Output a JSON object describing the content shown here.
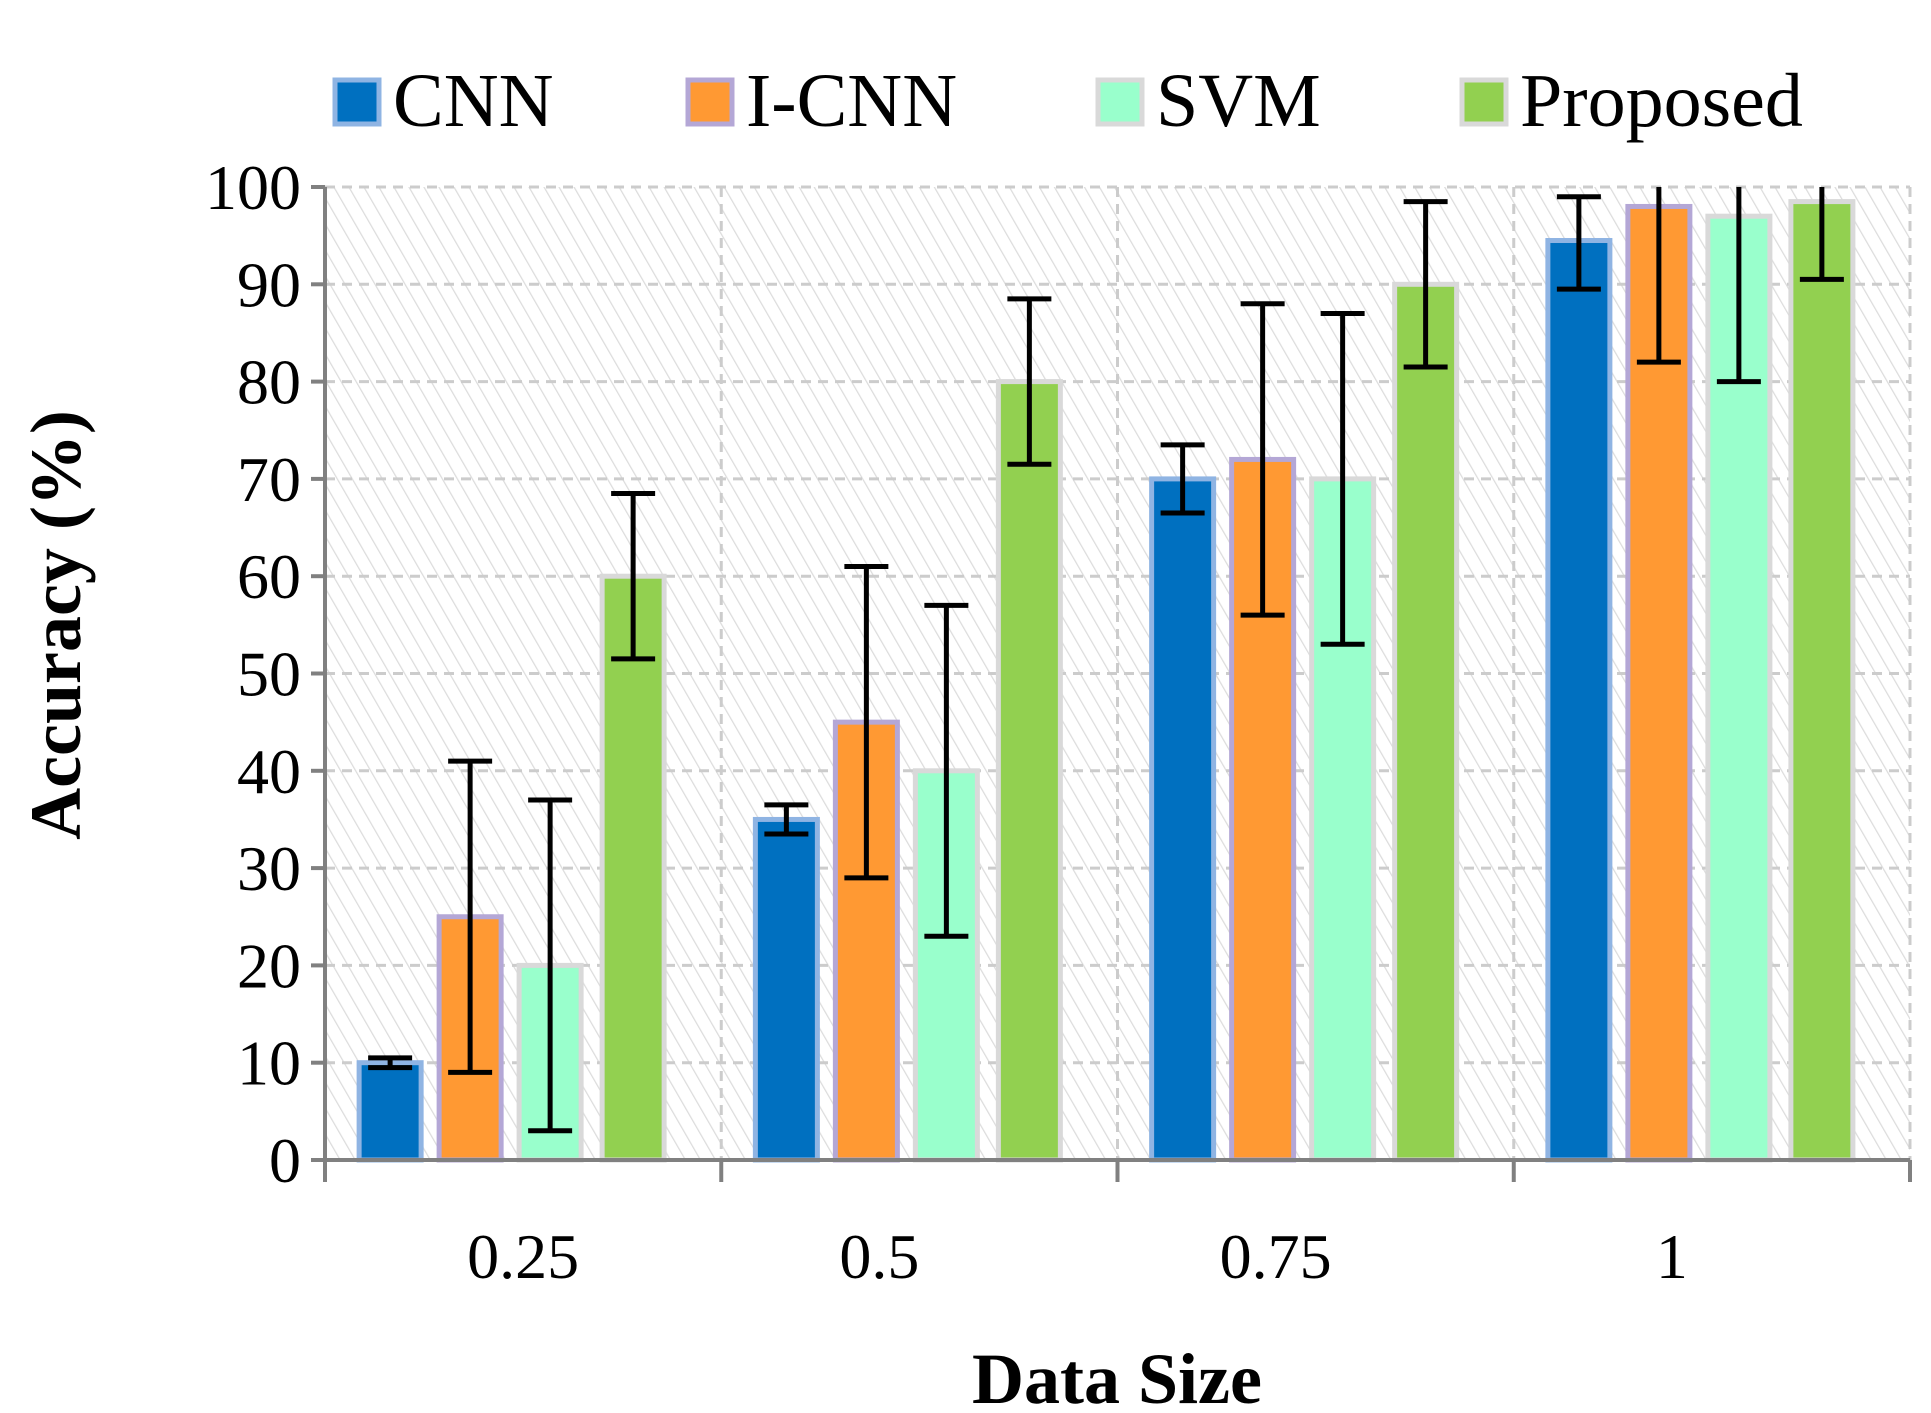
{
  "chart_data": {
    "type": "bar",
    "xlabel": "Data Size",
    "ylabel": "Accuracy (%)",
    "categories": [
      "0.25",
      "0.5",
      "0.75",
      "1"
    ],
    "ylim": [
      0,
      100
    ],
    "yticks": [
      0,
      10,
      20,
      30,
      40,
      50,
      60,
      70,
      80,
      90,
      100
    ],
    "grid": true,
    "legend_position": "top",
    "series": [
      {
        "name": "CNN",
        "color": "#0070C0",
        "edge": "#8FB4E3",
        "values": [
          10,
          35,
          70,
          94.5
        ],
        "err_low": [
          9.5,
          33.5,
          66.5,
          89.5
        ],
        "err_high": [
          10.5,
          36.5,
          73.5,
          99
        ]
      },
      {
        "name": "I-CNN",
        "color": "#FF9933",
        "edge": "#B4A7D6",
        "values": [
          25,
          45,
          72,
          98
        ],
        "err_low": [
          9,
          29,
          56,
          82
        ],
        "err_high": [
          41,
          61,
          88,
          100
        ]
      },
      {
        "name": "SVM",
        "color": "#99FFCC",
        "edge": "#D9D9D9",
        "values": [
          20,
          40,
          70,
          97
        ],
        "err_low": [
          3,
          23,
          53,
          80
        ],
        "err_high": [
          37,
          57,
          87,
          100
        ]
      },
      {
        "name": "Proposed",
        "color": "#92D050",
        "edge": "#D9D9D9",
        "values": [
          60,
          80,
          90,
          98.5
        ],
        "err_low": [
          51.5,
          71.5,
          81.5,
          90.5
        ],
        "err_high": [
          68.5,
          88.5,
          98.5,
          100
        ]
      }
    ]
  }
}
